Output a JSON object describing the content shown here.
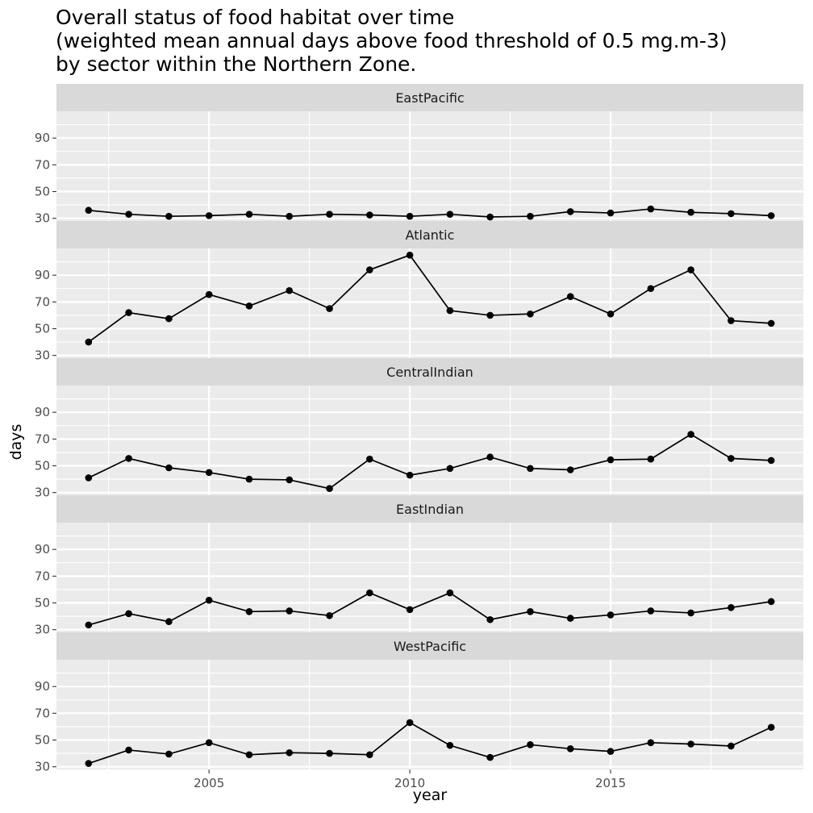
{
  "chart_data": {
    "type": "line",
    "title_lines": [
      "Overall status of food habitat over time",
      "(weighted mean annual days above food threshold of 0.5 mg.m-3)",
      "by sector within the Northern Zone."
    ],
    "xlabel": "year",
    "ylabel": "days",
    "x": [
      2002,
      2003,
      2004,
      2005,
      2006,
      2007,
      2008,
      2009,
      2010,
      2011,
      2012,
      2013,
      2014,
      2015,
      2016,
      2017,
      2018,
      2019
    ],
    "xlim": [
      2001.2,
      2019.8
    ],
    "ylim": [
      28,
      110
    ],
    "x_ticks": [
      2005,
      2010,
      2015
    ],
    "x_tick_labels": [
      "2005",
      "2010",
      "2015"
    ],
    "y_ticks": [
      30,
      50,
      70,
      90
    ],
    "y_tick_labels": [
      "30",
      "50",
      "70",
      "90"
    ],
    "grid": true,
    "series": [
      {
        "name": "EastPacific",
        "values": [
          36,
          33,
          31.5,
          32,
          33,
          31.5,
          33,
          32.5,
          31.5,
          33,
          31,
          31.5,
          35,
          34,
          37,
          34.5,
          33.5,
          32
        ]
      },
      {
        "name": "Atlantic",
        "values": [
          40,
          62,
          57.5,
          75.5,
          67,
          78.5,
          65,
          94,
          105,
          63.5,
          60,
          61,
          74,
          61,
          80,
          94,
          56,
          54
        ]
      },
      {
        "name": "CentralIndian",
        "values": [
          41,
          55.5,
          48.5,
          45,
          40,
          39.5,
          33,
          55,
          43,
          48,
          56.5,
          48,
          47,
          54.5,
          55,
          73.5,
          55.5,
          54
        ]
      },
      {
        "name": "EastIndian",
        "values": [
          33.5,
          42,
          36,
          52,
          43.5,
          44,
          40.5,
          57.5,
          45,
          57.5,
          37.5,
          43.5,
          38.5,
          41,
          44,
          42.5,
          46.5,
          51
        ]
      },
      {
        "name": "WestPacific",
        "values": [
          32.5,
          42.5,
          39.5,
          48,
          39,
          40.5,
          40,
          39,
          63,
          46,
          37,
          46.5,
          43.5,
          41.5,
          48,
          47,
          45.5,
          59.5
        ]
      }
    ]
  }
}
